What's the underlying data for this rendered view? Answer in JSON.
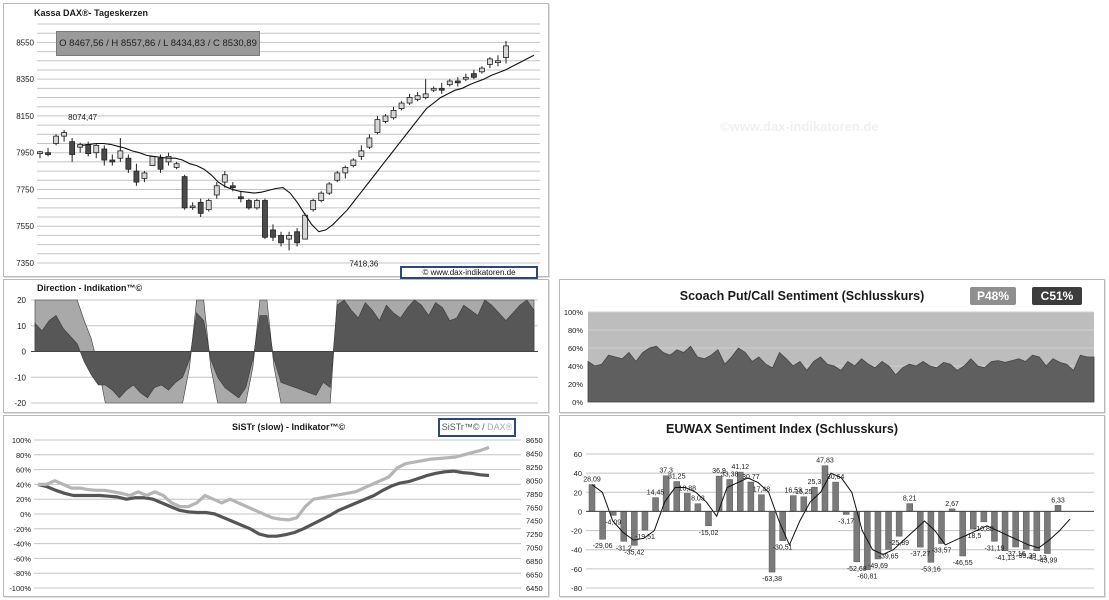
{
  "watermark": "©www.dax-indikatoren.de",
  "chart_data": [
    {
      "id": "candles",
      "type": "candlestick",
      "title": "Kassa DAX®- Tageskerzen",
      "ohlc_label": "O 8467,56 / H 8557,86 / L 8434,83 / C 8530,89",
      "credit": "© www.dax-indikatoren.de",
      "y_ticks": [
        7350,
        7550,
        7750,
        7950,
        8150,
        8350,
        8550
      ],
      "ylim": [
        7350,
        8650
      ],
      "annotations": [
        {
          "text": "8074,47",
          "x": 5,
          "y": 8074.47
        },
        {
          "text": "7418,36",
          "x": 40,
          "y": 7418.36
        }
      ],
      "candles": [
        [
          7945,
          7960,
          7920,
          7955
        ],
        [
          7950,
          7975,
          7930,
          7940
        ],
        [
          8000,
          8050,
          7990,
          8040
        ],
        [
          8040,
          8074,
          8010,
          8060
        ],
        [
          8010,
          8030,
          7900,
          7940
        ],
        [
          7980,
          8005,
          7950,
          7995
        ],
        [
          7995,
          8010,
          7930,
          7945
        ],
        [
          7950,
          8000,
          7920,
          7990
        ],
        [
          7970,
          7990,
          7880,
          7910
        ],
        [
          7910,
          7940,
          7880,
          7900
        ],
        [
          7920,
          8030,
          7900,
          7960
        ],
        [
          7920,
          7940,
          7840,
          7860
        ],
        [
          7850,
          7890,
          7770,
          7790
        ],
        [
          7810,
          7850,
          7790,
          7840
        ],
        [
          7880,
          7930,
          7880,
          7930
        ],
        [
          7920,
          7940,
          7840,
          7860
        ],
        [
          7900,
          7950,
          7880,
          7930
        ],
        [
          7870,
          7900,
          7860,
          7890
        ],
        [
          7820,
          7830,
          7640,
          7650
        ],
        [
          7660,
          7680,
          7640,
          7660
        ],
        [
          7680,
          7700,
          7600,
          7620
        ],
        [
          7640,
          7700,
          7630,
          7690
        ],
        [
          7720,
          7790,
          7700,
          7770
        ],
        [
          7790,
          7850,
          7760,
          7830
        ],
        [
          7770,
          7790,
          7740,
          7760
        ],
        [
          7710,
          7740,
          7680,
          7700
        ],
        [
          7690,
          7700,
          7640,
          7650
        ],
        [
          7650,
          7700,
          7640,
          7690
        ],
        [
          7690,
          7700,
          7480,
          7490
        ],
        [
          7530,
          7560,
          7470,
          7490
        ],
        [
          7500,
          7520,
          7440,
          7460
        ],
        [
          7480,
          7520,
          7418.36,
          7500
        ],
        [
          7520,
          7540,
          7440,
          7460
        ],
        [
          7480,
          7620,
          7480,
          7610
        ],
        [
          7640,
          7700,
          7630,
          7690
        ],
        [
          7690,
          7740,
          7680,
          7730
        ],
        [
          7730,
          7790,
          7720,
          7780
        ],
        [
          7800,
          7850,
          7790,
          7840
        ],
        [
          7840,
          7880,
          7810,
          7870
        ],
        [
          7880,
          7920,
          7870,
          7910
        ],
        [
          7930,
          7990,
          7910,
          7960
        ],
        [
          7980,
          8050,
          7970,
          8030
        ],
        [
          8060,
          8150,
          8050,
          8130
        ],
        [
          8120,
          8160,
          8110,
          8150
        ],
        [
          8140,
          8200,
          8130,
          8180
        ],
        [
          8190,
          8230,
          8180,
          8220
        ],
        [
          8220,
          8270,
          8210,
          8250
        ],
        [
          8240,
          8280,
          8230,
          8260
        ],
        [
          8250,
          8350,
          8240,
          8270
        ],
        [
          8290,
          8310,
          8280,
          8300
        ],
        [
          8300,
          8330,
          8270,
          8290
        ],
        [
          8320,
          8350,
          8310,
          8340
        ],
        [
          8340,
          8360,
          8310,
          8330
        ],
        [
          8350,
          8380,
          8340,
          8360
        ],
        [
          8380,
          8400,
          8350,
          8360
        ],
        [
          8390,
          8420,
          8380,
          8410
        ],
        [
          8430,
          8470,
          8410,
          8460
        ],
        [
          8440,
          8480,
          8420,
          8450
        ],
        [
          8467.56,
          8557.86,
          8434.83,
          8530.89
        ]
      ],
      "moving_average": [
        7990,
        7995,
        8000,
        8000,
        7995,
        7985,
        7975,
        7960,
        7950,
        7935,
        7930,
        7925,
        7920,
        7920,
        7910,
        7890,
        7880,
        7860,
        7830,
        7790,
        7765,
        7750,
        7740,
        7735,
        7730,
        7735,
        7745,
        7755,
        7760,
        7730,
        7680,
        7620,
        7560,
        7520,
        7530,
        7560,
        7600,
        7640,
        7690,
        7740,
        7790,
        7840,
        7890,
        7940,
        7990,
        8040,
        8090,
        8140,
        8190,
        8220,
        8250,
        8270,
        8290,
        8300,
        8320,
        8335,
        8350,
        8370,
        8385,
        8400,
        8420,
        8440,
        8460,
        8480
      ]
    },
    {
      "id": "direction",
      "type": "area",
      "title": "Direction  - Indikation™©",
      "y_ticks": [
        20,
        10,
        0,
        -10,
        -20
      ],
      "ylim": [
        -20,
        20
      ],
      "series": [
        {
          "values": [
            20,
            20,
            20,
            20,
            20,
            20,
            20,
            12,
            5,
            -6,
            -20,
            -20,
            -20,
            -20,
            -20,
            -20,
            -20,
            -20,
            -20,
            -20,
            -20,
            -20,
            -6,
            20,
            20,
            -6,
            -20,
            -20,
            -20,
            -20,
            -20,
            -6,
            20,
            20,
            -6,
            -20,
            -20,
            -20,
            -20,
            -20,
            -20,
            -20,
            -20,
            20,
            20,
            20,
            20,
            20,
            20,
            20,
            20,
            20,
            20,
            20,
            20,
            20,
            20,
            20,
            20,
            20,
            20,
            20,
            20,
            20,
            20,
            20,
            20,
            20,
            20,
            20,
            20,
            20
          ]
        },
        {
          "values": [
            11,
            8,
            12,
            14,
            9,
            6,
            3,
            -4,
            -9,
            -13,
            -13,
            -15,
            -18,
            -15,
            -13,
            -16,
            -18,
            -14,
            -13,
            -15,
            -12,
            -10,
            -3,
            15,
            12,
            -3,
            -10,
            -14,
            -16,
            -18,
            -14,
            -3,
            14,
            14,
            -3,
            -12,
            -13,
            -14,
            -15,
            -16,
            -17,
            -12,
            -14,
            18,
            20,
            16,
            13,
            19,
            16,
            12,
            18,
            15,
            13,
            17,
            20,
            18,
            14,
            19,
            17,
            12,
            13,
            18,
            16,
            14,
            20,
            18,
            15,
            12,
            15,
            18,
            20,
            16
          ]
        }
      ]
    },
    {
      "id": "putcall",
      "type": "area",
      "title": "Scoach Put/Call Sentiment (Schlusskurs)",
      "badges": [
        {
          "label": "P48%",
          "color": "#8f8f8f"
        },
        {
          "label": "C51%",
          "color": "#3c3c3c"
        }
      ],
      "y_ticks": [
        "100%",
        "80%",
        "60%",
        "40%",
        "20%",
        "0%"
      ],
      "ylim": [
        0,
        100
      ],
      "values": [
        45,
        40,
        42,
        52,
        50,
        48,
        55,
        45,
        55,
        60,
        62,
        55,
        52,
        58,
        55,
        62,
        50,
        48,
        52,
        58,
        42,
        50,
        60,
        55,
        45,
        50,
        42,
        38,
        55,
        48,
        40,
        45,
        35,
        45,
        50,
        42,
        40,
        35,
        45,
        40,
        48,
        42,
        38,
        45,
        40,
        30,
        38,
        42,
        40,
        45,
        40,
        38,
        44,
        42,
        35,
        40,
        48,
        40,
        38,
        45,
        46,
        44,
        46,
        48,
        45,
        52,
        50,
        40,
        48,
        44,
        42,
        35,
        52,
        50,
        50
      ]
    },
    {
      "id": "sistr",
      "type": "line",
      "title": "SiSTr (slow) - Indikator™©",
      "legend": {
        "a": "SiSTr™©",
        "sep": "/",
        "b": "DAX®"
      },
      "y_left_ticks": [
        "100%",
        "80%",
        "60%",
        "40%",
        "20%",
        "0%",
        "-20%",
        "-40%",
        "-60%",
        "-80%",
        "-100%"
      ],
      "y_right_ticks": [
        "8650",
        "8450",
        "8250",
        "8050",
        "7850",
        "7650",
        "7450",
        "7250",
        "7050",
        "6850",
        "6650",
        "6450"
      ],
      "ylim": [
        -100,
        100
      ],
      "series": [
        {
          "name": "SiSTr™©",
          "color": "#555555",
          "values": [
            40,
            37,
            32,
            28,
            25,
            25,
            25,
            25,
            24,
            23,
            20,
            22,
            22,
            20,
            15,
            10,
            5,
            3,
            2,
            2,
            0,
            -5,
            -10,
            -15,
            -20,
            -27,
            -30,
            -30,
            -28,
            -25,
            -20,
            -14,
            -8,
            -2,
            5,
            10,
            15,
            20,
            25,
            32,
            38,
            42,
            44,
            48,
            52,
            55,
            57,
            58,
            56,
            55,
            53,
            52
          ]
        },
        {
          "name": "DAX®",
          "color": "#b5b5b5",
          "values": [
            40,
            40,
            45,
            40,
            35,
            35,
            33,
            32,
            32,
            30,
            28,
            25,
            30,
            25,
            30,
            25,
            15,
            10,
            10,
            15,
            25,
            20,
            15,
            20,
            15,
            10,
            5,
            0,
            -5,
            -7,
            -8,
            -5,
            10,
            20,
            22,
            24,
            26,
            28,
            30,
            35,
            40,
            45,
            50,
            62,
            68,
            70,
            72,
            74,
            75,
            76,
            77,
            80,
            83,
            86,
            90
          ]
        }
      ]
    },
    {
      "id": "euwax",
      "type": "bar",
      "title": "EUWAX Sentiment Index (Schlusskurs)",
      "y_ticks": [
        60,
        40,
        20,
        0,
        -20,
        -40,
        -60,
        -80
      ],
      "ylim": [
        -80,
        60
      ],
      "values": [
        28.09,
        -29.06,
        -4.09,
        -31.2,
        -35.42,
        -19.51,
        14.45,
        37.3,
        31.25,
        18.88,
        8.03,
        -15.02,
        36.9,
        33.38,
        41.12,
        30.77,
        17.48,
        -63.38,
        -30.51,
        16.53,
        15.25,
        25.3,
        47.83,
        30.64,
        -3.17,
        -52.68,
        -60.81,
        -49.69,
        -39.65,
        -25.89,
        8.21,
        -37.27,
        -53.16,
        -33.57,
        2.67,
        -46.55,
        -18.5,
        -10.88,
        -31.19,
        -41.13,
        -37.16,
        -39.39,
        -41.13,
        -43.99,
        6.33
      ],
      "labels": [
        "28,09",
        "-29,06",
        "-4,09",
        "-31,2",
        "-35,42",
        "-19,51",
        "14,45",
        "37,3",
        "31,25",
        "18,88",
        "8,03",
        "-15,02",
        "36,9",
        "33,38",
        "41,12",
        "30,77",
        "17,48",
        "-63,38",
        "-30,51",
        "16,53",
        "15,25",
        "25,3",
        "47,83",
        "30,64",
        "-3,17",
        "-52,68",
        "-60,81",
        "-49,69",
        "-39,65",
        "-25,89",
        "8,21",
        "-37,27",
        "-53,16",
        "-33,57",
        "2,67",
        "-46,55",
        "-18,5",
        "-10,88",
        "-31,19",
        "-41,13",
        "-37,16",
        "-39,39",
        "-41,13",
        "-43,99",
        "6,33"
      ],
      "line": [
        28,
        20,
        -10,
        -22,
        -30,
        -28,
        -20,
        10,
        25,
        25,
        20,
        10,
        -5,
        25,
        30,
        35,
        30,
        20,
        -10,
        -35,
        -10,
        10,
        20,
        40,
        35,
        20,
        -20,
        -40,
        -45,
        -40,
        -30,
        -20,
        -10,
        -20,
        -35,
        -30,
        -25,
        -20,
        -15,
        -20,
        -25,
        -30,
        -35,
        -38,
        -30,
        -20,
        -8
      ]
    }
  ]
}
